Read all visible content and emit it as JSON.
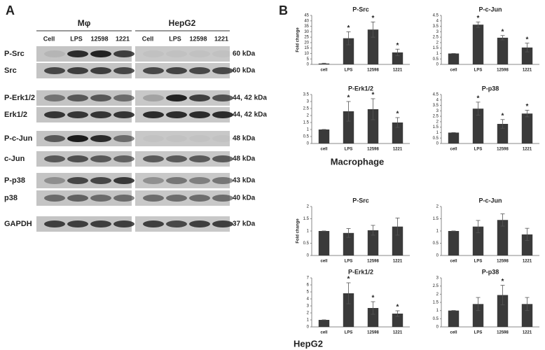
{
  "panel_a": {
    "label": "A",
    "groups": [
      "Mφ",
      "HepG2"
    ],
    "lanes": [
      "Cell",
      "LPS",
      "12598",
      "1221",
      "Cell",
      "LPS",
      "12598",
      "1221"
    ],
    "rows": [
      {
        "name": "P-Src",
        "size": "60 kDa"
      },
      {
        "name": "Src",
        "size": "60 kDa"
      },
      {
        "name": "P-Erk1/2",
        "size": "44, 42 kDa"
      },
      {
        "name": "Erk1/2",
        "size": "44, 42 kDa"
      },
      {
        "name": "P-c-Jun",
        "size": "48 kDa"
      },
      {
        "name": "c-Jun",
        "size": "48 kDa"
      },
      {
        "name": "P-p38",
        "size": "43 kDa"
      },
      {
        "name": "p38",
        "size": "40 kDa"
      },
      {
        "name": "GAPDH",
        "size": "37 kDa"
      }
    ]
  },
  "panel_b": {
    "label": "B",
    "group_labels": [
      "Macrophage",
      "HepG2"
    ]
  },
  "chart_data": [
    {
      "type": "bar",
      "title": "P-Src",
      "ylabel": "Fold change",
      "categories": [
        "cell",
        "LPS",
        "12598",
        "1221"
      ],
      "values": [
        0.8,
        24,
        32,
        11
      ],
      "errors": [
        0.3,
        6,
        7,
        3
      ],
      "markers": [
        null,
        "*",
        "*",
        "*"
      ],
      "ylim": [
        0,
        45
      ],
      "yticks": [
        0,
        5,
        10,
        15,
        20,
        25,
        30,
        35,
        40,
        45
      ],
      "color": "#3a3a3a"
    },
    {
      "type": "bar",
      "title": "P-c-Jun",
      "categories": [
        "cell",
        "LPS",
        "12598",
        "1221"
      ],
      "values": [
        1,
        3.65,
        2.45,
        1.55
      ],
      "errors": [
        0,
        0.25,
        0.2,
        0.4
      ],
      "markers": [
        null,
        "*",
        "*",
        "*"
      ],
      "ylim": [
        0,
        4.5
      ],
      "yticks": [
        0,
        0.5,
        1,
        1.5,
        2,
        2.5,
        3,
        3.5,
        4,
        4.5
      ],
      "color": "#3a3a3a"
    },
    {
      "type": "bar",
      "title": "P-Erk1/2",
      "categories": [
        "cell",
        "LPS",
        "12598",
        "1221"
      ],
      "values": [
        1,
        2.3,
        2.45,
        1.5
      ],
      "errors": [
        0,
        0.7,
        0.75,
        0.35
      ],
      "markers": [
        null,
        "*",
        "*",
        "*"
      ],
      "ylim": [
        0,
        3.5
      ],
      "yticks": [
        0,
        0.5,
        1,
        1.5,
        2,
        2.5,
        3,
        3.5
      ],
      "color": "#3a3a3a"
    },
    {
      "type": "bar",
      "title": "P-p38",
      "categories": [
        "cell",
        "LPS",
        "12598",
        "1221"
      ],
      "values": [
        1,
        3.2,
        1.8,
        2.75
      ],
      "errors": [
        0,
        0.6,
        0.4,
        0.3
      ],
      "markers": [
        null,
        "*",
        "*",
        "*"
      ],
      "ylim": [
        0,
        4.5
      ],
      "yticks": [
        0,
        0.5,
        1,
        1.5,
        2,
        2.5,
        3,
        3.5,
        4,
        4.5
      ],
      "color": "#3a3a3a"
    },
    {
      "type": "bar",
      "title": "P-Src",
      "ylabel": "Fold change",
      "categories": [
        "cell",
        "LPS",
        "12598",
        "1221"
      ],
      "values": [
        1,
        0.92,
        1.03,
        1.18
      ],
      "errors": [
        0,
        0.18,
        0.2,
        0.35
      ],
      "markers": [
        null,
        null,
        null,
        null
      ],
      "ylim": [
        0,
        2
      ],
      "yticks": [
        0,
        0.5,
        1,
        1.5,
        2
      ],
      "color": "#3a3a3a"
    },
    {
      "type": "bar",
      "title": "P-c-Jun",
      "categories": [
        "cell",
        "LPS",
        "12598",
        "1221"
      ],
      "values": [
        1,
        1.18,
        1.45,
        0.86
      ],
      "errors": [
        0,
        0.25,
        0.25,
        0.25
      ],
      "markers": [
        null,
        null,
        null,
        null
      ],
      "ylim": [
        0,
        2
      ],
      "yticks": [
        0,
        0.5,
        1,
        1.5,
        2
      ],
      "color": "#3a3a3a"
    },
    {
      "type": "bar",
      "title": "P-Erk1/2",
      "categories": [
        "cell",
        "LPS",
        "12598",
        "1221"
      ],
      "values": [
        1,
        4.8,
        2.7,
        1.9
      ],
      "errors": [
        0,
        1.5,
        0.9,
        0.4
      ],
      "markers": [
        null,
        "*",
        "*",
        "*"
      ],
      "ylim": [
        0,
        7
      ],
      "yticks": [
        0,
        1,
        2,
        3,
        4,
        5,
        6,
        7
      ],
      "color": "#3a3a3a"
    },
    {
      "type": "bar",
      "title": "P-p38",
      "categories": [
        "cell",
        "LPS",
        "12598",
        "1221"
      ],
      "values": [
        1,
        1.4,
        1.95,
        1.4
      ],
      "errors": [
        0,
        0.4,
        0.6,
        0.4
      ],
      "markers": [
        null,
        null,
        "*",
        null
      ],
      "ylim": [
        0,
        3
      ],
      "yticks": [
        0,
        0.5,
        1,
        1.5,
        2,
        2.5,
        3
      ],
      "color": "#3a3a3a"
    }
  ]
}
